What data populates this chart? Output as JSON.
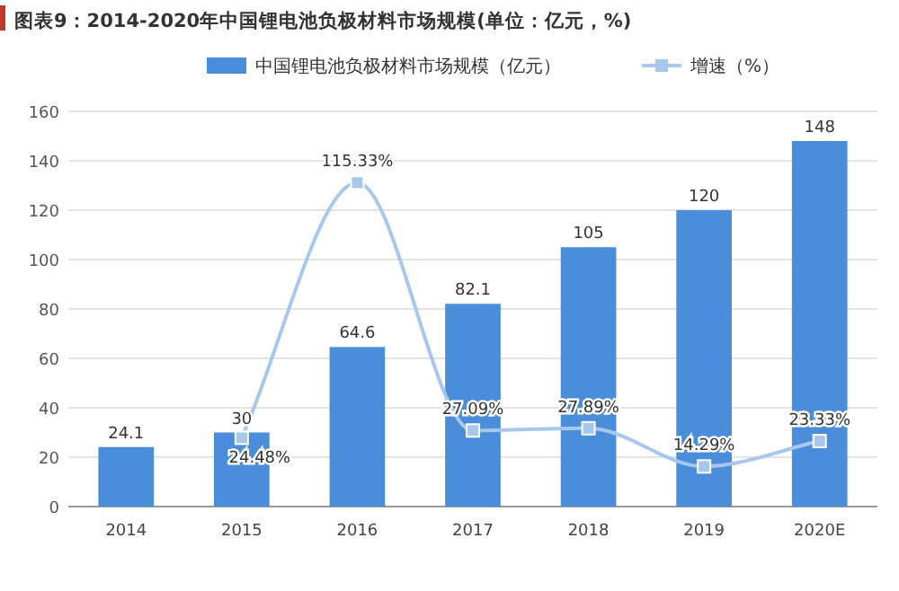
{
  "chart_data": {
    "type": "bar",
    "title": "图表9：2014-2020年中国锂电池负极材料市场规模(单位：亿元，%)",
    "categories": [
      "2014",
      "2015",
      "2016",
      "2017",
      "2018",
      "2019",
      "2020E"
    ],
    "series": [
      {
        "name": "中国锂电池负极材料市场规模（亿元）",
        "color": "#4a8edb",
        "values": [
          24.1,
          30,
          64.6,
          82.1,
          105,
          120,
          148
        ],
        "value_labels": [
          "24.1",
          "30",
          "64.6",
          "82.1",
          "105",
          "120",
          "148"
        ]
      },
      {
        "name": "增速（%）",
        "type": "line",
        "axis": "y2",
        "color": "#a7c7ec",
        "marker": "square",
        "values": [
          null,
          24.48,
          115.33,
          27.09,
          27.89,
          14.29,
          23.33
        ],
        "value_labels": [
          null,
          "24.48%",
          "115.33%",
          "27.09%",
          "27.89%",
          "14.29%",
          "23.33%"
        ]
      }
    ],
    "ylim": [
      0,
      160
    ],
    "yticks": [
      0,
      20,
      40,
      60,
      80,
      100,
      120,
      140,
      160
    ],
    "grid": "y",
    "legend": "top"
  }
}
